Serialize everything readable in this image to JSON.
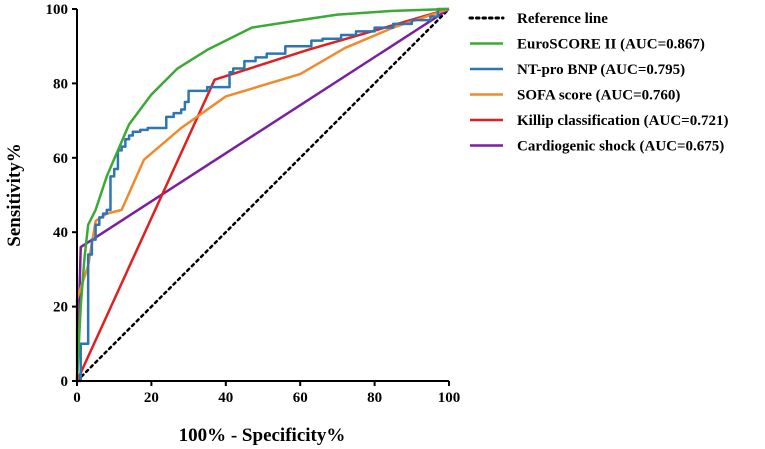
{
  "chart_data": {
    "type": "line",
    "title": "",
    "xlabel": "100% - Specificity%",
    "ylabel": "Sensitivity%",
    "xlim": [
      0,
      100
    ],
    "ylim": [
      0,
      100
    ],
    "xticks": [
      "0",
      "20",
      "40",
      "60",
      "80",
      "100"
    ],
    "yticks": [
      "0",
      "20",
      "40",
      "60",
      "80",
      "100"
    ],
    "legend_position": "right",
    "series": [
      {
        "name": "Reference line",
        "label": "Reference line",
        "color": "#000000",
        "dashed": true,
        "x": [
          0,
          100
        ],
        "y": [
          0,
          100
        ]
      },
      {
        "name": "EuroSCORE II",
        "label": "EuroSCORE II (AUC=0.867)",
        "color": "#3aaa35",
        "x": [
          0,
          1,
          2,
          3,
          5,
          8,
          14,
          20,
          27,
          35,
          47,
          60,
          70,
          85,
          100
        ],
        "y": [
          0,
          20,
          33,
          42,
          46,
          55,
          69,
          77,
          84,
          89,
          95,
          97,
          98.5,
          99.5,
          100
        ]
      },
      {
        "name": "NT-pro BNP",
        "label": "NT-pro BNP (AUC=0.795)",
        "color": "#2e75b6",
        "x": [
          0,
          1,
          1,
          3,
          3,
          4,
          4,
          5,
          5,
          6,
          6,
          7,
          7,
          8,
          8,
          9,
          9,
          10,
          10,
          11,
          11,
          12,
          12,
          13,
          13,
          14,
          14,
          15,
          15,
          17,
          17,
          19,
          19,
          24,
          24,
          26,
          26,
          28,
          28,
          29,
          29,
          30,
          30,
          35,
          35,
          41,
          41,
          42,
          42,
          45,
          45,
          48,
          48,
          51,
          51,
          56,
          56,
          63,
          63,
          66,
          66,
          71,
          71,
          75,
          75,
          80,
          80,
          85,
          85,
          90,
          90,
          95,
          95,
          97,
          97,
          100
        ],
        "y": [
          0,
          0,
          10,
          10,
          34,
          34,
          38,
          38,
          42,
          42,
          44,
          44,
          45,
          45,
          46,
          46,
          55,
          55,
          57,
          57,
          62,
          62,
          63,
          63,
          65,
          65,
          66,
          66,
          67,
          67,
          67.5,
          67.5,
          68,
          68,
          71,
          71,
          72,
          72,
          73,
          73,
          75,
          75,
          78,
          78,
          79,
          79,
          83,
          83,
          84,
          84,
          86,
          86,
          87,
          87,
          88,
          88,
          90,
          90,
          91.5,
          91.5,
          92,
          92,
          93,
          93,
          94,
          94,
          95,
          95,
          96,
          96,
          97,
          97,
          98,
          98,
          100,
          100
        ]
      },
      {
        "name": "SOFA score",
        "label": "SOFA score (AUC=0.760)",
        "color": "#f08a2c",
        "x": [
          0,
          0,
          3,
          5,
          8,
          12,
          18,
          28,
          40,
          60,
          72,
          85,
          100
        ],
        "y": [
          0,
          22,
          31,
          43,
          45,
          46,
          59.5,
          68,
          76.5,
          82.5,
          89.5,
          95,
          100
        ]
      },
      {
        "name": "Killip classification",
        "label": "Killip classification (AUC=0.721)",
        "color": "#e02020",
        "x": [
          0,
          37,
          62,
          100
        ],
        "y": [
          0,
          81,
          89,
          100
        ]
      },
      {
        "name": "Cardiogenic shock",
        "label": "Cardiogenic shock (AUC=0.675)",
        "color": "#7b1fa2",
        "x": [
          0,
          1,
          100
        ],
        "y": [
          0,
          36,
          100
        ]
      }
    ]
  }
}
